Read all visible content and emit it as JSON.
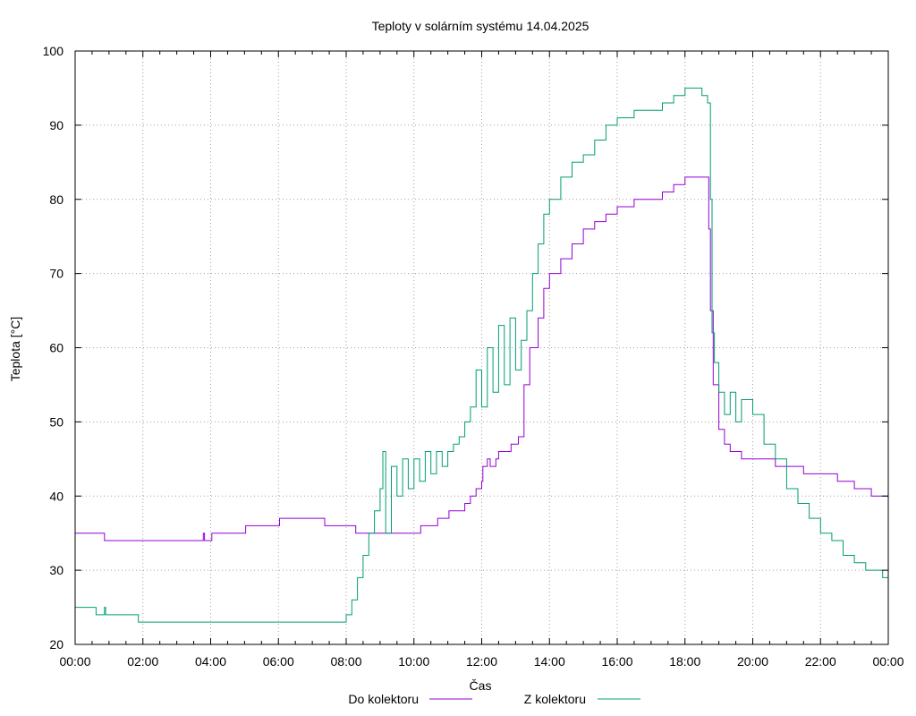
{
  "chart_data": {
    "type": "line",
    "title": "Teploty v solárním systému 14.04.2025",
    "xlabel": "Čas",
    "ylabel": "Teplota [°C]",
    "ylim": [
      20,
      100
    ],
    "xlim": [
      "00:00",
      "24:00"
    ],
    "x_ticks": [
      "00:00",
      "02:00",
      "04:00",
      "06:00",
      "08:00",
      "10:00",
      "12:00",
      "14:00",
      "16:00",
      "18:00",
      "20:00",
      "22:00",
      "00:00"
    ],
    "y_ticks": [
      "20",
      "30",
      "40",
      "50",
      "60",
      "70",
      "80",
      "90",
      "100"
    ],
    "grid": true,
    "legend_position": "bottom-center",
    "series": [
      {
        "name": "Do kolektoru",
        "color": "#9400d3",
        "points": [
          [
            "00:00",
            35
          ],
          [
            "00:50",
            35
          ],
          [
            "00:52",
            34
          ],
          [
            "03:45",
            34
          ],
          [
            "03:47",
            35
          ],
          [
            "03:49",
            34
          ],
          [
            "04:00",
            34
          ],
          [
            "04:02",
            35
          ],
          [
            "05:00",
            35
          ],
          [
            "05:02",
            36
          ],
          [
            "06:00",
            36
          ],
          [
            "06:02",
            37
          ],
          [
            "07:20",
            37
          ],
          [
            "07:22",
            36
          ],
          [
            "08:15",
            36
          ],
          [
            "08:17",
            35
          ],
          [
            "10:10",
            35
          ],
          [
            "10:12",
            36
          ],
          [
            "10:40",
            36
          ],
          [
            "10:42",
            37
          ],
          [
            "11:00",
            37
          ],
          [
            "11:02",
            38
          ],
          [
            "11:20",
            38
          ],
          [
            "11:30",
            39
          ],
          [
            "11:40",
            40
          ],
          [
            "11:50",
            41
          ],
          [
            "12:00",
            42
          ],
          [
            "12:02",
            44
          ],
          [
            "12:10",
            45
          ],
          [
            "12:15",
            44
          ],
          [
            "12:25",
            45
          ],
          [
            "12:30",
            46
          ],
          [
            "12:50",
            46
          ],
          [
            "12:52",
            47
          ],
          [
            "13:00",
            47
          ],
          [
            "13:05",
            48
          ],
          [
            "13:10",
            48
          ],
          [
            "13:15",
            55
          ],
          [
            "13:25",
            60
          ],
          [
            "13:40",
            64
          ],
          [
            "13:50",
            68
          ],
          [
            "14:00",
            70
          ],
          [
            "14:20",
            72
          ],
          [
            "14:40",
            74
          ],
          [
            "15:00",
            76
          ],
          [
            "15:20",
            77
          ],
          [
            "15:40",
            78
          ],
          [
            "16:00",
            79
          ],
          [
            "16:30",
            80
          ],
          [
            "17:00",
            80
          ],
          [
            "17:20",
            81
          ],
          [
            "17:40",
            82
          ],
          [
            "18:00",
            83
          ],
          [
            "18:40",
            83
          ],
          [
            "18:42",
            76
          ],
          [
            "18:45",
            65
          ],
          [
            "18:50",
            55
          ],
          [
            "19:00",
            49
          ],
          [
            "19:10",
            47
          ],
          [
            "19:20",
            46
          ],
          [
            "19:30",
            46
          ],
          [
            "19:40",
            45
          ],
          [
            "20:00",
            45
          ],
          [
            "20:30",
            45
          ],
          [
            "20:40",
            44
          ],
          [
            "21:00",
            44
          ],
          [
            "21:30",
            43
          ],
          [
            "22:00",
            43
          ],
          [
            "22:30",
            42
          ],
          [
            "23:00",
            41
          ],
          [
            "23:30",
            40
          ],
          [
            "24:00",
            40
          ]
        ]
      },
      {
        "name": "Z kolektoru",
        "color": "#009e73",
        "points": [
          [
            "00:00",
            25
          ],
          [
            "00:35",
            25
          ],
          [
            "00:37",
            24
          ],
          [
            "00:50",
            24
          ],
          [
            "00:52",
            25
          ],
          [
            "00:54",
            24
          ],
          [
            "01:50",
            24
          ],
          [
            "01:52",
            23
          ],
          [
            "07:45",
            23
          ],
          [
            "07:50",
            23
          ],
          [
            "08:00",
            24
          ],
          [
            "08:10",
            26
          ],
          [
            "08:20",
            29
          ],
          [
            "08:30",
            32
          ],
          [
            "08:40",
            35
          ],
          [
            "08:50",
            38
          ],
          [
            "09:00",
            41
          ],
          [
            "09:05",
            46
          ],
          [
            "09:10",
            35
          ],
          [
            "09:20",
            44
          ],
          [
            "09:30",
            40
          ],
          [
            "09:40",
            45
          ],
          [
            "09:50",
            41
          ],
          [
            "10:00",
            45
          ],
          [
            "10:10",
            42
          ],
          [
            "10:20",
            46
          ],
          [
            "10:30",
            43
          ],
          [
            "10:40",
            46
          ],
          [
            "10:50",
            44
          ],
          [
            "11:00",
            46
          ],
          [
            "11:10",
            47
          ],
          [
            "11:20",
            48
          ],
          [
            "11:30",
            50
          ],
          [
            "11:40",
            52
          ],
          [
            "11:50",
            57
          ],
          [
            "12:00",
            52
          ],
          [
            "12:10",
            60
          ],
          [
            "12:20",
            54
          ],
          [
            "12:30",
            63
          ],
          [
            "12:40",
            55
          ],
          [
            "12:50",
            64
          ],
          [
            "13:00",
            57
          ],
          [
            "13:10",
            61
          ],
          [
            "13:20",
            65
          ],
          [
            "13:30",
            70
          ],
          [
            "13:40",
            74
          ],
          [
            "13:50",
            78
          ],
          [
            "14:00",
            80
          ],
          [
            "14:20",
            83
          ],
          [
            "14:40",
            85
          ],
          [
            "15:00",
            86
          ],
          [
            "15:20",
            88
          ],
          [
            "15:40",
            90
          ],
          [
            "16:00",
            91
          ],
          [
            "16:30",
            92
          ],
          [
            "17:00",
            92
          ],
          [
            "17:20",
            93
          ],
          [
            "17:40",
            94
          ],
          [
            "18:00",
            95
          ],
          [
            "18:30",
            94
          ],
          [
            "18:40",
            93
          ],
          [
            "18:45",
            80
          ],
          [
            "18:48",
            62
          ],
          [
            "18:52",
            58
          ],
          [
            "19:00",
            54
          ],
          [
            "19:10",
            51
          ],
          [
            "19:20",
            54
          ],
          [
            "19:30",
            50
          ],
          [
            "19:40",
            53
          ],
          [
            "20:00",
            51
          ],
          [
            "20:20",
            47
          ],
          [
            "20:40",
            45
          ],
          [
            "21:00",
            41
          ],
          [
            "21:20",
            39
          ],
          [
            "21:40",
            37
          ],
          [
            "22:00",
            35
          ],
          [
            "22:20",
            34
          ],
          [
            "22:40",
            32
          ],
          [
            "23:00",
            31
          ],
          [
            "23:20",
            30
          ],
          [
            "23:40",
            30
          ],
          [
            "23:50",
            29
          ],
          [
            "24:00",
            29
          ]
        ]
      }
    ]
  }
}
